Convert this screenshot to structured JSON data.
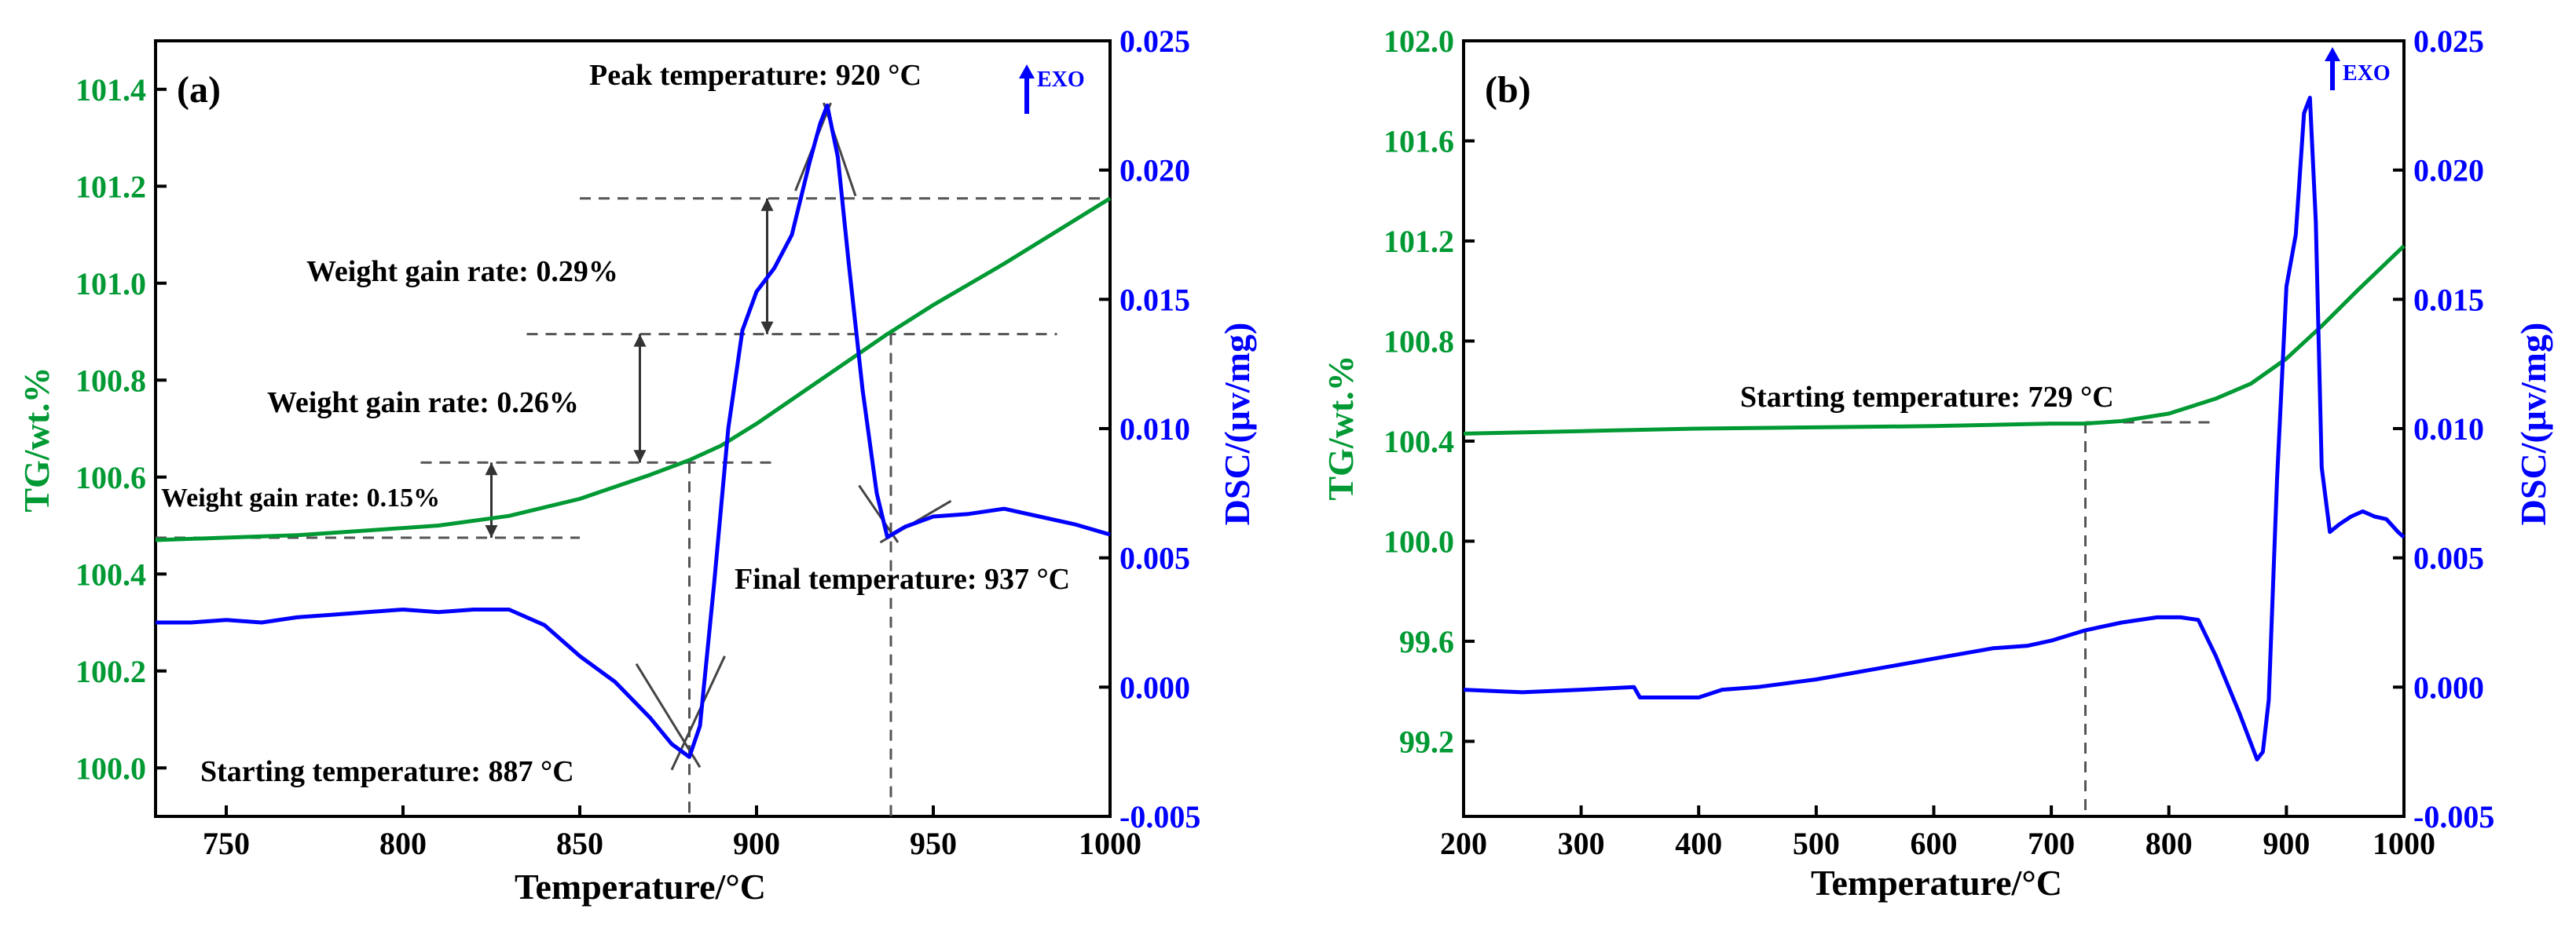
{
  "colors": {
    "tg": "#009933",
    "dsc": "#0000ff",
    "axis": "#000000",
    "guide": "#555555"
  },
  "chart_data": [
    {
      "type": "line",
      "panel_label": "(a)",
      "xlabel": "Temperature/°C",
      "ylabel_left": "TG/wt.%",
      "ylabel_right": "DSC/(μv/mg)",
      "exo_label": "EXO",
      "xlim": [
        730,
        1000
      ],
      "ylim_left": [
        99.9,
        101.5
      ],
      "ylim_right": [
        -0.005,
        0.025
      ],
      "x_ticks": [
        750,
        800,
        850,
        900,
        950,
        1000
      ],
      "x_tick_labels": [
        "750",
        "800",
        "850",
        "900",
        "950",
        "1000"
      ],
      "y_left_ticks": [
        100.0,
        100.2,
        100.4,
        100.6,
        100.8,
        101.0,
        101.2,
        101.4
      ],
      "y_left_tick_labels": [
        "100.0",
        "100.2",
        "100.4",
        "100.6",
        "100.8",
        "101.0",
        "101.2",
        "101.4"
      ],
      "y_right_ticks": [
        -0.005,
        0.0,
        0.005,
        0.01,
        0.015,
        0.02,
        0.025
      ],
      "y_right_tick_labels": [
        "-0.005",
        "0.000",
        "0.005",
        "0.010",
        "0.015",
        "0.020",
        "0.025"
      ],
      "series": [
        {
          "name": "TG",
          "axis": "left",
          "color": "#009933",
          "x": [
            730,
            750,
            770,
            790,
            810,
            830,
            850,
            860,
            870,
            881,
            890,
            900,
            910,
            920,
            930,
            937,
            950,
            970,
            990,
            1000
          ],
          "y": [
            100.47,
            100.475,
            100.48,
            100.49,
            100.5,
            100.52,
            100.555,
            100.58,
            100.605,
            100.635,
            100.665,
            100.71,
            100.76,
            100.81,
            100.86,
            100.895,
            100.955,
            101.04,
            101.13,
            101.175
          ]
        },
        {
          "name": "DSC",
          "axis": "right",
          "color": "#0000ff",
          "x": [
            730,
            740,
            750,
            760,
            770,
            780,
            790,
            800,
            810,
            820,
            830,
            840,
            850,
            860,
            870,
            876,
            881,
            884,
            888,
            892,
            896,
            900,
            905,
            910,
            915,
            918,
            920,
            923,
            926,
            930,
            934,
            937,
            942,
            950,
            960,
            970,
            980,
            990,
            1000
          ],
          "y": [
            0.0025,
            0.0025,
            0.0026,
            0.0025,
            0.0027,
            0.0028,
            0.0029,
            0.003,
            0.0029,
            0.003,
            0.003,
            0.0024,
            0.0012,
            0.0002,
            -0.0012,
            -0.0022,
            -0.0027,
            -0.0015,
            0.004,
            0.01,
            0.0138,
            0.0153,
            0.0162,
            0.0175,
            0.0203,
            0.0218,
            0.0225,
            0.0205,
            0.0165,
            0.0115,
            0.0075,
            0.0058,
            0.0062,
            0.0066,
            0.0067,
            0.0069,
            0.0066,
            0.0063,
            0.0059
          ]
        }
      ],
      "annotations": [
        {
          "text": "Peak temperature: 920 °C",
          "x": 920
        },
        {
          "text": "Weight gain rate: 0.29%"
        },
        {
          "text": "Weight gain rate: 0.26%"
        },
        {
          "text": "Weight gain rate: 0.15%"
        },
        {
          "text": "Final temperature: 937 °C",
          "x": 937
        },
        {
          "text": "Starting temperature: 887 °C",
          "x": 887
        }
      ]
    },
    {
      "type": "line",
      "panel_label": "(b)",
      "xlabel": "Temperature/°C",
      "ylabel_left": "TG/wt.%",
      "ylabel_right": "DSC/(μv/mg)",
      "exo_label": "EXO",
      "xlim": [
        200,
        1000
      ],
      "ylim_left": [
        98.9,
        102.0
      ],
      "ylim_right": [
        -0.005,
        0.025
      ],
      "x_ticks": [
        200,
        300,
        400,
        500,
        600,
        700,
        800,
        900,
        1000
      ],
      "x_tick_labels": [
        "200",
        "300",
        "400",
        "500",
        "600",
        "700",
        "800",
        "900",
        "1000"
      ],
      "y_left_ticks": [
        99.2,
        99.6,
        100.0,
        100.4,
        100.8,
        101.2,
        101.6,
        102.0
      ],
      "y_left_tick_labels": [
        "99.2",
        "99.6",
        "100.0",
        "100.4",
        "100.8",
        "101.2",
        "101.6",
        "102.0"
      ],
      "y_right_ticks": [
        -0.005,
        0.0,
        0.005,
        0.01,
        0.015,
        0.02,
        0.025
      ],
      "y_right_tick_labels": [
        "-0.005",
        "0.000",
        "0.005",
        "0.010",
        "0.015",
        "0.020",
        "0.025"
      ],
      "series": [
        {
          "name": "TG",
          "axis": "left",
          "color": "#009933",
          "x": [
            200,
            300,
            400,
            500,
            600,
            700,
            729,
            760,
            800,
            840,
            870,
            900,
            930,
            960,
            1000
          ],
          "y": [
            100.43,
            100.44,
            100.45,
            100.455,
            100.46,
            100.47,
            100.47,
            100.48,
            100.51,
            100.57,
            100.63,
            100.73,
            100.86,
            101.0,
            101.18
          ]
        },
        {
          "name": "DSC",
          "axis": "right",
          "color": "#0000ff",
          "x": [
            200,
            250,
            300,
            345,
            350,
            360,
            400,
            420,
            450,
            500,
            550,
            600,
            650,
            680,
            700,
            729,
            760,
            790,
            810,
            825,
            840,
            860,
            875,
            880,
            885,
            892,
            900,
            908,
            915,
            920,
            925,
            930,
            937,
            945,
            955,
            965,
            975,
            985,
            995,
            1000
          ],
          "y": [
            -0.0001,
            -0.0002,
            -0.0001,
            0.0,
            -0.0004,
            -0.0004,
            -0.0004,
            -0.0001,
            0.0,
            0.0003,
            0.0007,
            0.0011,
            0.0015,
            0.0016,
            0.0018,
            0.0022,
            0.0025,
            0.0027,
            0.0027,
            0.0026,
            0.0012,
            -0.001,
            -0.0028,
            -0.0025,
            -0.0005,
            0.008,
            0.0155,
            0.0175,
            0.0222,
            0.0228,
            0.018,
            0.0085,
            0.006,
            0.0063,
            0.0066,
            0.0068,
            0.0066,
            0.0065,
            0.006,
            0.0058
          ]
        }
      ],
      "annotations": [
        {
          "text": "Starting temperature: 729 °C",
          "x": 729
        }
      ]
    }
  ]
}
